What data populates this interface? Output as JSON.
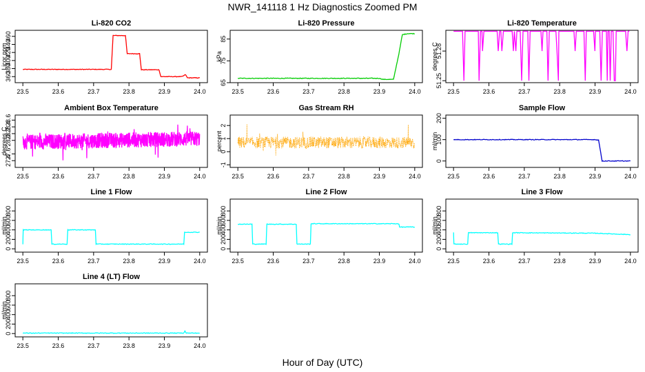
{
  "title": "NWR_141118  1 Hz Diagnostics Zoomed PM",
  "x_axis_title": "Hour of Day (UTC)",
  "chart_data": [
    {
      "type": "line",
      "title": "Li-820 CO2",
      "ylabel": "Licor ppm",
      "color": "#ff0000",
      "xlim": [
        23.5,
        24.0
      ],
      "ylim": [
        345,
        475
      ],
      "xticks": [
        "23.5",
        "23.6",
        "23.7",
        "23.8",
        "23.9",
        "24.0"
      ],
      "yticks": [
        "360",
        "380",
        "400",
        "420",
        "440",
        "460"
      ],
      "series": [
        {
          "x": [
            23.5,
            23.6,
            23.75,
            23.755,
            23.79,
            23.795,
            23.83,
            23.835,
            23.885,
            23.89,
            23.95,
            23.96,
            23.965,
            24.0
          ],
          "y": [
            378,
            378,
            378,
            462,
            462,
            417,
            417,
            377,
            377,
            360,
            360,
            365,
            357,
            357
          ]
        }
      ]
    },
    {
      "type": "line",
      "title": "Li-820 Pressure",
      "ylabel": "kPa",
      "color": "#00cc00",
      "xlim": [
        23.5,
        24.0
      ],
      "ylim": [
        65,
        89
      ],
      "xticks": [
        "23.5",
        "23.6",
        "23.7",
        "23.8",
        "23.9",
        "24.0"
      ],
      "yticks": [
        "65",
        "75",
        "85"
      ],
      "series": [
        {
          "x": [
            23.5,
            23.9,
            23.91,
            23.94,
            23.955,
            23.965,
            23.98,
            24.0
          ],
          "y": [
            67,
            67,
            66.5,
            66.5,
            78,
            87,
            87.5,
            87.5
          ]
        }
      ]
    },
    {
      "type": "line",
      "title": "Li-820 Temperature",
      "ylabel": "degrees C",
      "color": "#ff00ff",
      "xlim": [
        23.5,
        24.0
      ],
      "ylim": [
        51.248,
        51.301
      ],
      "xticks": [
        "23.5",
        "23.6",
        "23.7",
        "23.8",
        "23.9",
        "24.0"
      ],
      "yticks": [
        "51.25",
        "51.28"
      ],
      "series": [
        {
          "x": [
            23.5,
            24.0
          ],
          "y": [
            51.25,
            51.3
          ]
        }
      ]
    },
    {
      "type": "line",
      "title": "Ambient Box Temperature",
      "ylabel": "degrees C",
      "color": "#ff00ff",
      "xlim": [
        23.5,
        24.0
      ],
      "ylim": [
        27.2,
        28.75
      ],
      "xticks": [
        "23.5",
        "23.6",
        "23.7",
        "23.8",
        "23.9",
        "24.0"
      ],
      "yticks": [
        "27.4",
        "27.6",
        "28.0",
        "28.2",
        "28.4",
        "28.6"
      ],
      "series": [
        {
          "x": [
            23.5,
            24.0
          ],
          "y": [
            27.7,
            28.3
          ]
        }
      ]
    },
    {
      "type": "line",
      "title": "Gas Stream RH",
      "ylabel": "percent",
      "color": "#ffa500",
      "xlim": [
        23.5,
        24.0
      ],
      "ylim": [
        -1.2,
        2.8
      ],
      "xticks": [
        "23.5",
        "23.6",
        "23.7",
        "23.8",
        "23.9",
        "24.0"
      ],
      "yticks": [
        "-1",
        "0",
        "1",
        "2"
      ],
      "series": [
        {
          "x": [
            23.5,
            24.0
          ],
          "y": [
            0.7,
            0.7
          ]
        }
      ]
    },
    {
      "type": "line",
      "title": "Sample Flow",
      "ylabel": "ml/min",
      "color": "#0000cc",
      "xlim": [
        23.5,
        24.0
      ],
      "ylim": [
        -30,
        215
      ],
      "xticks": [
        "23.5",
        "23.6",
        "23.7",
        "23.8",
        "23.9",
        "24.0"
      ],
      "yticks": [
        "0",
        "100",
        "200"
      ],
      "series": [
        {
          "x": [
            23.5,
            23.9,
            23.91,
            23.92,
            24.0
          ],
          "y": [
            100,
            100,
            98,
            0,
            0
          ]
        }
      ]
    },
    {
      "type": "line",
      "title": "Line 1 Flow",
      "ylabel": "ml/min",
      "color": "#00ffff",
      "xlim": [
        23.5,
        24.0
      ],
      "ylim": [
        -70,
        1050
      ],
      "xticks": [
        "23.5",
        "23.6",
        "23.7",
        "23.8",
        "23.9",
        "24.0"
      ],
      "yticks": [
        "0",
        "200",
        "400",
        "600",
        "800"
      ],
      "series": [
        {
          "x": [
            23.5,
            23.501,
            23.58,
            23.582,
            23.625,
            23.627,
            23.705,
            23.707,
            23.955,
            23.957,
            24.0
          ],
          "y": [
            100,
            400,
            400,
            100,
            100,
            400,
            400,
            100,
            100,
            350,
            350
          ]
        }
      ]
    },
    {
      "type": "line",
      "title": "Line 2 Flow",
      "ylabel": "ml/min",
      "color": "#00ffff",
      "xlim": [
        23.5,
        24.0
      ],
      "ylim": [
        -70,
        1050
      ],
      "xticks": [
        "23.5",
        "23.6",
        "23.7",
        "23.8",
        "23.9",
        "24.0"
      ],
      "yticks": [
        "0",
        "200",
        "400",
        "600",
        "800"
      ],
      "series": [
        {
          "x": [
            23.5,
            23.54,
            23.542,
            23.58,
            23.582,
            23.665,
            23.667,
            23.705,
            23.707,
            23.955,
            23.957,
            24.0
          ],
          "y": [
            520,
            520,
            100,
            100,
            520,
            520,
            100,
            100,
            530,
            530,
            460,
            460
          ]
        }
      ]
    },
    {
      "type": "line",
      "title": "Line 3 Flow",
      "ylabel": "ml/min",
      "color": "#00ffff",
      "xlim": [
        23.5,
        24.0
      ],
      "ylim": [
        -70,
        1050
      ],
      "xticks": [
        "23.5",
        "23.6",
        "23.7",
        "23.8",
        "23.9",
        "24.0"
      ],
      "yticks": [
        "0",
        "200",
        "400",
        "600",
        "800"
      ],
      "series": [
        {
          "x": [
            23.5,
            23.501,
            23.54,
            23.542,
            23.625,
            23.627,
            23.665,
            23.667,
            23.9,
            24.0
          ],
          "y": [
            350,
            100,
            100,
            340,
            340,
            100,
            100,
            340,
            330,
            300
          ]
        }
      ]
    },
    {
      "type": "line",
      "title": "Line 4 (LT) Flow",
      "ylabel": "ml/min",
      "color": "#00ffff",
      "xlim": [
        23.5,
        24.0
      ],
      "ylim": [
        -70,
        1050
      ],
      "xticks": [
        "23.5",
        "23.6",
        "23.7",
        "23.8",
        "23.9",
        "24.0"
      ],
      "yticks": [
        "0",
        "200",
        "400",
        "600",
        "800"
      ],
      "series": [
        {
          "x": [
            23.5,
            23.955,
            23.958,
            23.962,
            24.0
          ],
          "y": [
            10,
            10,
            60,
            10,
            10
          ]
        }
      ]
    }
  ]
}
